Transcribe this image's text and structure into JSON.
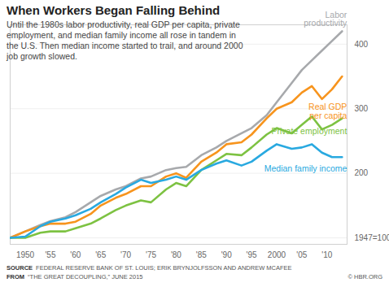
{
  "chart_data": {
    "type": "line",
    "title": "When Workers Began Falling Behind",
    "subtitle": "Until the 1980s labor productivity, real GDP per capita, private employment, and median family income all rose in tandem in the U.S. Then median income started to trail, and around 2000 job growth slowed.",
    "source_label": "SOURCE",
    "source": "FEDERAL RESERVE BANK OF ST. LOUIS; ERIK BRYNJOLFSSON AND ANDREW MCAFEE",
    "from_label": "FROM",
    "from": "“THE GREAT DECOUPLING,” JUNE 2015",
    "credit": "© HBR.ORG",
    "x": [
      1947,
      1950,
      1953,
      1955,
      1958,
      1960,
      1963,
      1965,
      1968,
      1970,
      1973,
      1975,
      1978,
      1980,
      1982,
      1985,
      1988,
      1990,
      1993,
      1995,
      1998,
      2000,
      2003,
      2005,
      2007,
      2009,
      2011,
      2013
    ],
    "series": [
      {
        "name": "Labor productivity",
        "color": "#a7a9ac",
        "values": [
          100,
          110,
          120,
          126,
          132,
          140,
          155,
          165,
          175,
          180,
          192,
          195,
          205,
          208,
          210,
          228,
          240,
          250,
          262,
          270,
          290,
          310,
          340,
          360,
          375,
          390,
          405,
          420
        ]
      },
      {
        "name": "Real GDP per capita",
        "color": "#f7941d",
        "values": [
          100,
          110,
          118,
          122,
          122,
          125,
          137,
          150,
          162,
          168,
          180,
          180,
          195,
          200,
          193,
          218,
          232,
          245,
          248,
          260,
          285,
          300,
          310,
          325,
          335,
          315,
          330,
          350
        ]
      },
      {
        "name": "Private employment",
        "color": "#7dc242",
        "values": [
          100,
          100,
          108,
          110,
          110,
          115,
          122,
          130,
          143,
          150,
          158,
          155,
          175,
          185,
          180,
          205,
          220,
          230,
          228,
          240,
          260,
          270,
          262,
          275,
          288,
          268,
          275,
          285
        ]
      },
      {
        "name": "Median family income",
        "color": "#29a9e0",
        "values": [
          100,
          102,
          118,
          125,
          130,
          135,
          145,
          155,
          168,
          178,
          190,
          185,
          190,
          195,
          190,
          205,
          215,
          220,
          212,
          218,
          235,
          245,
          238,
          240,
          245,
          232,
          225,
          225
        ]
      }
    ],
    "xlim": [
      1947,
      2014
    ],
    "xticks": [
      1950,
      {
        "value": 1955,
        "label": "'55"
      },
      {
        "value": 1960,
        "label": "'60"
      },
      {
        "value": 1965,
        "label": "'65"
      },
      {
        "value": 1970,
        "label": "'70"
      },
      {
        "value": 1975,
        "label": "'75"
      },
      {
        "value": 1980,
        "label": "'80"
      },
      {
        "value": 1985,
        "label": "'85"
      },
      {
        "value": 1990,
        "label": "'90"
      },
      {
        "value": 1995,
        "label": "'95"
      },
      2000,
      {
        "value": 2005,
        "label": "'05"
      },
      {
        "value": 2010,
        "label": "'10"
      }
    ],
    "ylim": [
      90,
      430
    ],
    "yticks": [
      {
        "value": 100,
        "label": "1947=100"
      },
      200,
      300,
      400
    ],
    "grid": true
  }
}
